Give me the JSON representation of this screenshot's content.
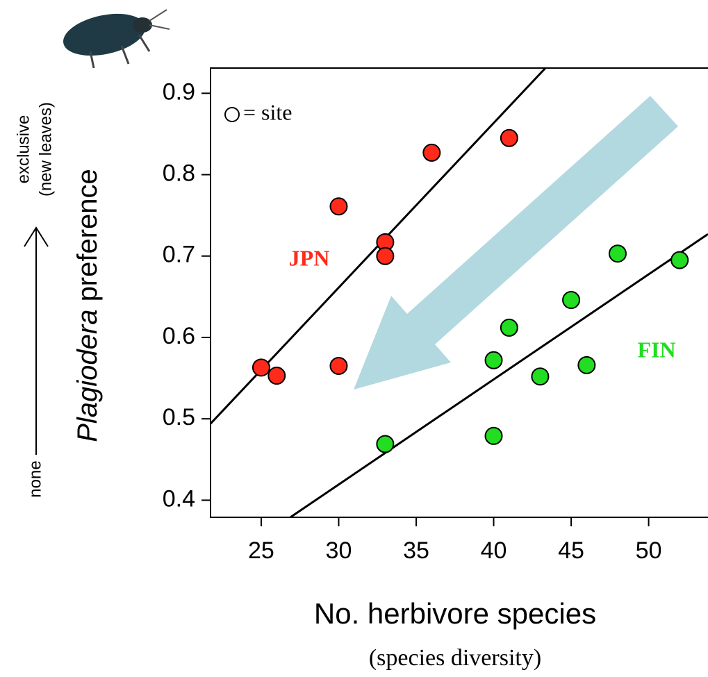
{
  "chart_data": {
    "type": "scatter",
    "y_label_italic": "Plagiodera",
    "y_label_rest": " preference",
    "y_arrow_top": [
      "exclusive",
      "(new leaves)"
    ],
    "y_arrow_bottom": "none",
    "x_label": "No. herbivore species",
    "x_sublabel": "(species diversity)",
    "legend_text": "= site",
    "xlim": [
      21.73,
      53.83
    ],
    "ylim": [
      0.379,
      0.931
    ],
    "xticks": [
      25,
      30,
      35,
      40,
      45,
      50
    ],
    "yticks": [
      0.4,
      0.5,
      0.6,
      0.7,
      0.8,
      0.9
    ],
    "series": [
      {
        "name": "JPN",
        "color": "#ff2a1a",
        "x": [
          25,
          26,
          30,
          30,
          33,
          33,
          36,
          41
        ],
        "values": [
          0.563,
          0.553,
          0.761,
          0.565,
          0.717,
          0.7,
          0.827,
          0.845
        ],
        "fit": {
          "x": [
            21.73,
            43.34
          ],
          "values": [
            0.494,
            0.931
          ]
        }
      },
      {
        "name": "FIN",
        "color": "#22dd22",
        "x": [
          33,
          40,
          40,
          41,
          43,
          45,
          46,
          48,
          52
        ],
        "values": [
          0.469,
          0.572,
          0.479,
          0.612,
          0.552,
          0.646,
          0.566,
          0.703,
          0.695
        ],
        "fit": {
          "x": [
            26.88,
            53.83
          ],
          "values": [
            0.379,
            0.727
          ]
        }
      }
    ]
  }
}
